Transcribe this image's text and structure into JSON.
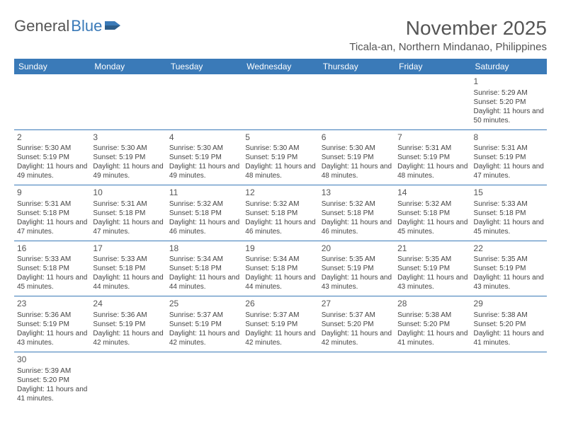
{
  "logo": {
    "part1": "General",
    "part2": "Blue"
  },
  "title": "November 2025",
  "location": "Ticala-an, Northern Mindanao, Philippines",
  "day_headers": [
    "Sunday",
    "Monday",
    "Tuesday",
    "Wednesday",
    "Thursday",
    "Friday",
    "Saturday"
  ],
  "labels": {
    "sunrise": "Sunrise:",
    "sunset": "Sunset:",
    "daylight": "Daylight:"
  },
  "colors": {
    "header_bg": "#3a7ab8",
    "header_text": "#ffffff",
    "text": "#444444",
    "title_text": "#555555",
    "row_border": "#3a7ab8",
    "background": "#ffffff"
  },
  "typography": {
    "title_fontsize": 28,
    "location_fontsize": 15,
    "header_fontsize": 12,
    "daynum_fontsize": 12,
    "body_fontsize": 10
  },
  "layout": {
    "cols": 7,
    "rows": 6,
    "first_day_col": 6,
    "last_day": 30
  },
  "days": [
    {
      "n": 1,
      "sr": "5:29 AM",
      "ss": "5:20 PM",
      "dl": "11 hours and 50 minutes."
    },
    {
      "n": 2,
      "sr": "5:30 AM",
      "ss": "5:19 PM",
      "dl": "11 hours and 49 minutes."
    },
    {
      "n": 3,
      "sr": "5:30 AM",
      "ss": "5:19 PM",
      "dl": "11 hours and 49 minutes."
    },
    {
      "n": 4,
      "sr": "5:30 AM",
      "ss": "5:19 PM",
      "dl": "11 hours and 49 minutes."
    },
    {
      "n": 5,
      "sr": "5:30 AM",
      "ss": "5:19 PM",
      "dl": "11 hours and 48 minutes."
    },
    {
      "n": 6,
      "sr": "5:30 AM",
      "ss": "5:19 PM",
      "dl": "11 hours and 48 minutes."
    },
    {
      "n": 7,
      "sr": "5:31 AM",
      "ss": "5:19 PM",
      "dl": "11 hours and 48 minutes."
    },
    {
      "n": 8,
      "sr": "5:31 AM",
      "ss": "5:19 PM",
      "dl": "11 hours and 47 minutes."
    },
    {
      "n": 9,
      "sr": "5:31 AM",
      "ss": "5:18 PM",
      "dl": "11 hours and 47 minutes."
    },
    {
      "n": 10,
      "sr": "5:31 AM",
      "ss": "5:18 PM",
      "dl": "11 hours and 47 minutes."
    },
    {
      "n": 11,
      "sr": "5:32 AM",
      "ss": "5:18 PM",
      "dl": "11 hours and 46 minutes."
    },
    {
      "n": 12,
      "sr": "5:32 AM",
      "ss": "5:18 PM",
      "dl": "11 hours and 46 minutes."
    },
    {
      "n": 13,
      "sr": "5:32 AM",
      "ss": "5:18 PM",
      "dl": "11 hours and 46 minutes."
    },
    {
      "n": 14,
      "sr": "5:32 AM",
      "ss": "5:18 PM",
      "dl": "11 hours and 45 minutes."
    },
    {
      "n": 15,
      "sr": "5:33 AM",
      "ss": "5:18 PM",
      "dl": "11 hours and 45 minutes."
    },
    {
      "n": 16,
      "sr": "5:33 AM",
      "ss": "5:18 PM",
      "dl": "11 hours and 45 minutes."
    },
    {
      "n": 17,
      "sr": "5:33 AM",
      "ss": "5:18 PM",
      "dl": "11 hours and 44 minutes."
    },
    {
      "n": 18,
      "sr": "5:34 AM",
      "ss": "5:18 PM",
      "dl": "11 hours and 44 minutes."
    },
    {
      "n": 19,
      "sr": "5:34 AM",
      "ss": "5:18 PM",
      "dl": "11 hours and 44 minutes."
    },
    {
      "n": 20,
      "sr": "5:35 AM",
      "ss": "5:19 PM",
      "dl": "11 hours and 43 minutes."
    },
    {
      "n": 21,
      "sr": "5:35 AM",
      "ss": "5:19 PM",
      "dl": "11 hours and 43 minutes."
    },
    {
      "n": 22,
      "sr": "5:35 AM",
      "ss": "5:19 PM",
      "dl": "11 hours and 43 minutes."
    },
    {
      "n": 23,
      "sr": "5:36 AM",
      "ss": "5:19 PM",
      "dl": "11 hours and 43 minutes."
    },
    {
      "n": 24,
      "sr": "5:36 AM",
      "ss": "5:19 PM",
      "dl": "11 hours and 42 minutes."
    },
    {
      "n": 25,
      "sr": "5:37 AM",
      "ss": "5:19 PM",
      "dl": "11 hours and 42 minutes."
    },
    {
      "n": 26,
      "sr": "5:37 AM",
      "ss": "5:19 PM",
      "dl": "11 hours and 42 minutes."
    },
    {
      "n": 27,
      "sr": "5:37 AM",
      "ss": "5:20 PM",
      "dl": "11 hours and 42 minutes."
    },
    {
      "n": 28,
      "sr": "5:38 AM",
      "ss": "5:20 PM",
      "dl": "11 hours and 41 minutes."
    },
    {
      "n": 29,
      "sr": "5:38 AM",
      "ss": "5:20 PM",
      "dl": "11 hours and 41 minutes."
    },
    {
      "n": 30,
      "sr": "5:39 AM",
      "ss": "5:20 PM",
      "dl": "11 hours and 41 minutes."
    }
  ]
}
